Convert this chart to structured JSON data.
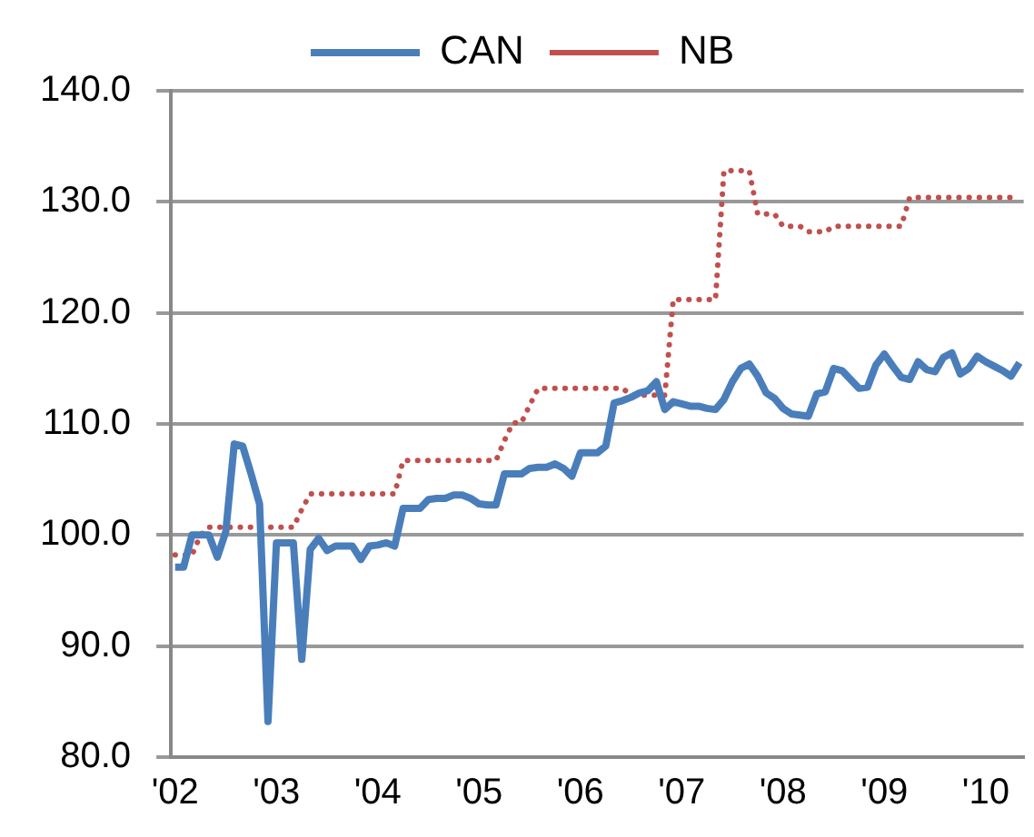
{
  "chart_data": {
    "type": "line",
    "categories": [
      "'02",
      null,
      null,
      null,
      null,
      null,
      null,
      null,
      null,
      null,
      null,
      null,
      "'03",
      null,
      null,
      null,
      null,
      null,
      null,
      null,
      null,
      null,
      null,
      null,
      "'04",
      null,
      null,
      null,
      null,
      null,
      null,
      null,
      null,
      null,
      null,
      null,
      "'05",
      null,
      null,
      null,
      null,
      null,
      null,
      null,
      null,
      null,
      null,
      null,
      "'06",
      null,
      null,
      null,
      null,
      null,
      null,
      null,
      null,
      null,
      null,
      null,
      "'07",
      null,
      null,
      null,
      null,
      null,
      null,
      null,
      null,
      null,
      null,
      null,
      "'08",
      null,
      null,
      null,
      null,
      null,
      null,
      null,
      null,
      null,
      null,
      null,
      "'09",
      null,
      null,
      null,
      null,
      null,
      null,
      null,
      null,
      null,
      null,
      null,
      "'10",
      null,
      null,
      null,
      null
    ],
    "series": [
      {
        "name": "CAN",
        "color": "#4a7ebb",
        "line_style": "solid",
        "values": [
          97.1,
          97.1,
          100.0,
          100.0,
          100.0,
          98.0,
          100.3,
          108.2,
          108.0,
          105.5,
          102.8,
          83.2,
          99.3,
          99.3,
          99.3,
          88.8,
          98.7,
          99.7,
          98.6,
          99.0,
          99.0,
          99.0,
          97.8,
          99.0,
          99.1,
          99.3,
          99.0,
          102.4,
          102.4,
          102.4,
          103.2,
          103.3,
          103.3,
          103.6,
          103.6,
          103.3,
          102.8,
          102.7,
          102.7,
          105.5,
          105.5,
          105.5,
          106.0,
          106.1,
          106.1,
          106.4,
          106.0,
          105.3,
          107.4,
          107.4,
          107.4,
          108.0,
          111.9,
          112.1,
          112.4,
          112.8,
          113.0,
          113.8,
          111.3,
          112.0,
          111.8,
          111.6,
          111.6,
          111.4,
          111.3,
          112.2,
          113.8,
          115.0,
          115.4,
          114.3,
          112.8,
          112.3,
          111.4,
          110.9,
          110.8,
          110.7,
          112.7,
          112.9,
          115.0,
          114.8,
          114.0,
          113.2,
          113.3,
          115.3,
          116.3,
          115.2,
          114.2,
          114.0,
          115.6,
          114.9,
          114.7,
          116.0,
          116.4,
          114.5,
          115.0,
          116.1,
          115.6,
          115.2,
          114.8,
          114.3,
          115.5
        ]
      },
      {
        "name": "NB",
        "color": "#c0504d",
        "line_style": "dotted",
        "values": [
          98.2,
          98.2,
          98.2,
          100.0,
          100.7,
          100.7,
          100.7,
          100.7,
          100.7,
          100.7,
          100.7,
          100.7,
          100.7,
          100.7,
          100.7,
          102.3,
          103.7,
          103.7,
          103.7,
          103.7,
          103.7,
          103.7,
          103.7,
          103.7,
          103.7,
          103.7,
          103.7,
          106.7,
          106.7,
          106.7,
          106.7,
          106.7,
          106.7,
          106.7,
          106.7,
          106.7,
          106.7,
          106.7,
          106.7,
          108.5,
          110.1,
          110.1,
          111.7,
          113.2,
          113.2,
          113.2,
          113.2,
          113.2,
          113.2,
          113.2,
          113.2,
          113.2,
          113.2,
          113.2,
          112.6,
          112.6,
          112.6,
          112.6,
          112.6,
          121.2,
          121.2,
          121.2,
          121.2,
          121.2,
          121.2,
          132.8,
          132.8,
          132.8,
          132.8,
          128.9,
          128.9,
          128.9,
          127.8,
          127.8,
          127.8,
          127.3,
          127.3,
          127.3,
          127.8,
          127.8,
          127.8,
          127.8,
          127.8,
          127.8,
          127.8,
          127.8,
          127.8,
          130.4,
          130.4,
          130.4,
          130.4,
          130.4,
          130.4,
          130.4,
          130.4,
          130.4,
          130.4,
          130.4,
          130.4,
          130.4,
          130.4
        ]
      }
    ],
    "ylim": [
      80,
      140
    ],
    "yticks": [
      {
        "value": 80,
        "label": "80.0"
      },
      {
        "value": 90,
        "label": "90.0"
      },
      {
        "value": 100,
        "label": "100.0"
      },
      {
        "value": 110,
        "label": "110.0"
      },
      {
        "value": 120,
        "label": "120.0"
      },
      {
        "value": 130,
        "label": "130.0"
      },
      {
        "value": 140,
        "label": "140.0"
      }
    ],
    "grid": "y",
    "legend": "top",
    "marker": "none"
  }
}
